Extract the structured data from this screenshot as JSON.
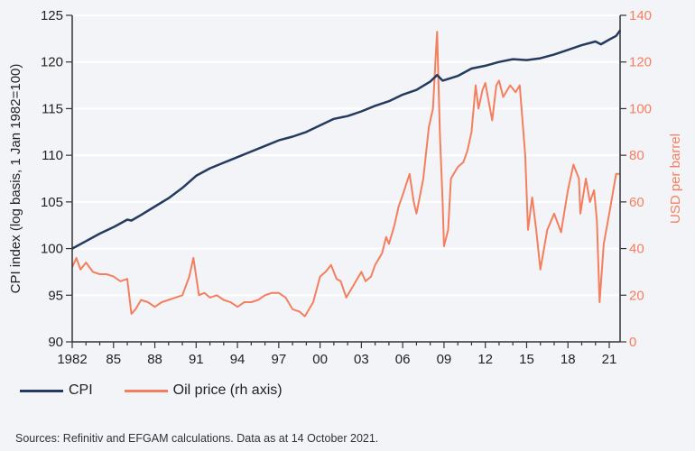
{
  "chart_data": {
    "type": "line",
    "xlim": [
      1982,
      2021.8
    ],
    "x_ticks": [
      1982,
      1985,
      1988,
      1991,
      1994,
      1997,
      2000,
      2003,
      2006,
      2009,
      2012,
      2015,
      2018,
      2021
    ],
    "x_tick_labels": [
      "1982",
      "85",
      "88",
      "91",
      "94",
      "97",
      "00",
      "03",
      "06",
      "09",
      "12",
      "15",
      "18",
      "21"
    ],
    "ylabel": "CPI index (log basis, 1 Jan 1982=100)",
    "ylim": [
      90,
      125
    ],
    "y_ticks": [
      90,
      95,
      100,
      105,
      110,
      115,
      120,
      125
    ],
    "y2label": "USD per barrel",
    "y2lim": [
      0,
      140
    ],
    "y2_ticks": [
      0,
      20,
      40,
      60,
      80,
      100,
      120,
      140
    ],
    "grid": true,
    "legend_placement": "bottom-left",
    "series": [
      {
        "name": "CPI",
        "axis": "left",
        "color": "#243a5e",
        "x": [
          1982,
          1983,
          1984,
          1985,
          1986,
          1986.3,
          1987,
          1988,
          1989,
          1990,
          1991,
          1992,
          1993,
          1994,
          1995,
          1996,
          1997,
          1998,
          1999,
          2000,
          2001,
          2002,
          2003,
          2004,
          2005,
          2006,
          2007,
          2008,
          2008.5,
          2008.9,
          2010,
          2011,
          2012,
          2013,
          2014,
          2015,
          2016,
          2017,
          2018,
          2019,
          2020,
          2020.4,
          2021,
          2021.5,
          2021.8
        ],
        "y": [
          100,
          100.8,
          101.6,
          102.3,
          103.1,
          103.0,
          103.6,
          104.5,
          105.4,
          106.5,
          107.8,
          108.6,
          109.2,
          109.8,
          110.4,
          111.0,
          111.6,
          112.0,
          112.5,
          113.2,
          113.9,
          114.2,
          114.7,
          115.3,
          115.8,
          116.5,
          117.0,
          117.9,
          118.6,
          118.0,
          118.5,
          119.3,
          119.6,
          120.0,
          120.3,
          120.2,
          120.4,
          120.8,
          121.3,
          121.8,
          122.2,
          121.9,
          122.4,
          122.8,
          123.4
        ]
      },
      {
        "name": "Oil price (rh axis)",
        "axis": "right",
        "color": "#f47f5f",
        "x": [
          1982,
          1982.3,
          1982.6,
          1983,
          1983.5,
          1984,
          1984.5,
          1985,
          1985.5,
          1986,
          1986.3,
          1986.6,
          1987,
          1987.5,
          1988,
          1988.5,
          1989,
          1989.5,
          1990,
          1990.5,
          1990.8,
          1991.2,
          1991.6,
          1992,
          1992.5,
          1993,
          1993.5,
          1994,
          1994.5,
          1995,
          1995.5,
          1996,
          1996.5,
          1997,
          1997.5,
          1998,
          1998.5,
          1998.9,
          1999.5,
          2000,
          2000.4,
          2000.8,
          2001.2,
          2001.5,
          2001.9,
          2002.5,
          2003,
          2003.3,
          2003.7,
          2004,
          2004.5,
          2004.8,
          2005,
          2005.4,
          2005.7,
          2006,
          2006.5,
          2006.8,
          2007,
          2007.5,
          2007.9,
          2008.2,
          2008.4,
          2008.5,
          2008.7,
          2008.9,
          2009,
          2009.3,
          2009.5,
          2010,
          2010.4,
          2010.7,
          2011,
          2011.3,
          2011.5,
          2011.8,
          2012,
          2012.5,
          2012.8,
          2013,
          2013.3,
          2013.6,
          2013.8,
          2014.2,
          2014.5,
          2014.9,
          2015.1,
          2015.4,
          2015.7,
          2016,
          2016.5,
          2017,
          2017.5,
          2018,
          2018.4,
          2018.8,
          2018.9,
          2019.3,
          2019.6,
          2019.9,
          2020.1,
          2020.3,
          2020.6,
          2021,
          2021.5,
          2021.8
        ],
        "y": [
          32,
          36,
          31,
          34,
          30,
          29,
          29,
          28,
          26,
          27,
          12,
          14,
          18,
          17,
          15,
          17,
          18,
          19,
          20,
          28,
          36,
          20,
          21,
          19,
          20,
          18,
          17,
          15,
          17,
          17,
          18,
          20,
          21,
          21,
          19,
          14,
          13,
          11,
          17,
          28,
          30,
          33,
          27,
          26,
          19,
          25,
          30,
          26,
          28,
          33,
          38,
          45,
          42,
          50,
          58,
          63,
          72,
          60,
          55,
          70,
          92,
          100,
          123,
          133,
          90,
          60,
          41,
          48,
          70,
          75,
          77,
          82,
          90,
          110,
          100,
          108,
          111,
          95,
          110,
          112,
          105,
          108,
          110,
          107,
          110,
          80,
          48,
          62,
          48,
          31,
          48,
          55,
          47,
          65,
          76,
          70,
          55,
          70,
          60,
          65,
          52,
          17,
          42,
          55,
          72,
          72
        ]
      }
    ]
  },
  "legend": {
    "cpi": "CPI",
    "oil": "Oil price (rh axis)"
  },
  "source": "Sources: Refinitiv and EFGAM calculations. Data as at 14 October 2021."
}
